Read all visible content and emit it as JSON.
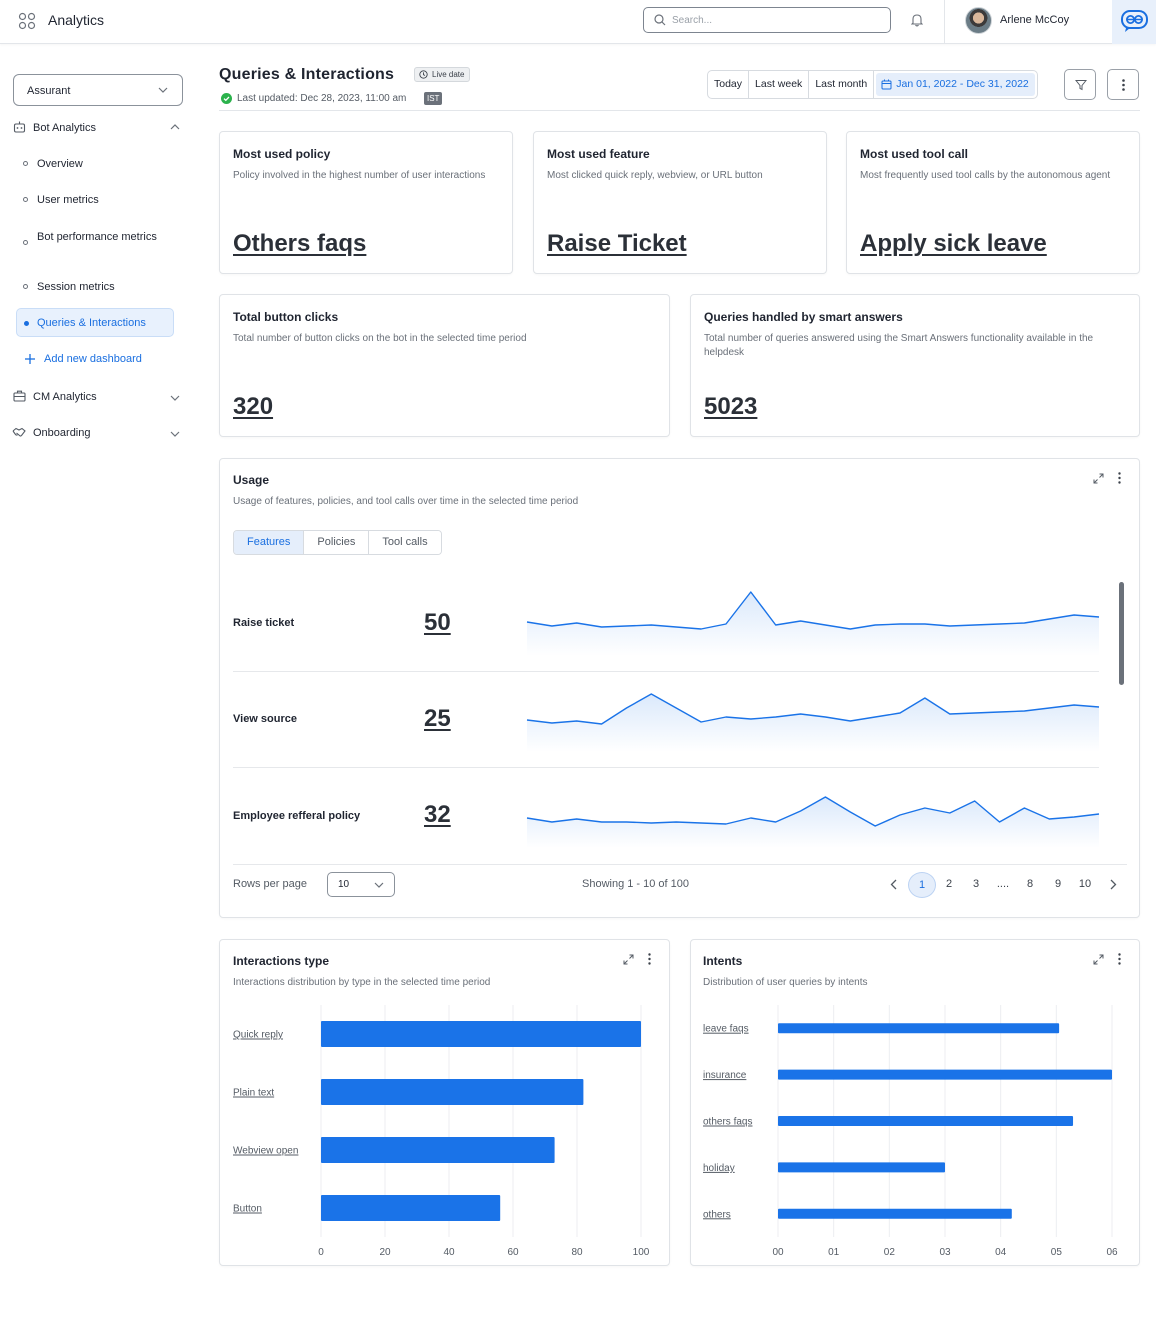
{
  "app": {
    "title": "Analytics"
  },
  "topbar": {
    "search_placeholder": "Search...",
    "user_name": "Arlene McCoy"
  },
  "sidebar": {
    "org": "Assurant",
    "sections": [
      {
        "label": "Bot Analytics"
      },
      {
        "label": "CM Analytics"
      },
      {
        "label": "Onboarding"
      }
    ],
    "items": [
      {
        "label": "Overview"
      },
      {
        "label": "User metrics"
      },
      {
        "label": "Bot performance metrics"
      },
      {
        "label": "Session metrics"
      },
      {
        "label": "Queries & Interactions"
      }
    ],
    "add_dashboard": "Add new dashboard"
  },
  "header": {
    "title": "Queries & Interactions",
    "live_badge": "Live date",
    "last_updated": "Last updated: Dec 28, 2023, 11:00 am",
    "timezone": "IST",
    "ranges": [
      "Today",
      "Last week",
      "Last month"
    ],
    "date_range": "Jan 01, 2022 - Dec 31, 2022"
  },
  "kpi_top": [
    {
      "title": "Most used policy",
      "desc": "Policy involved in the highest number of user interactions",
      "value": "Others faqs"
    },
    {
      "title": "Most used feature",
      "desc": "Most clicked quick reply, webview, or URL button",
      "value": "Raise Ticket"
    },
    {
      "title": "Most used tool call",
      "desc": "Most frequently used tool calls by the autonomous agent",
      "value": "Apply sick leave"
    }
  ],
  "kpi_mid": [
    {
      "title": "Total button clicks",
      "desc": "Total number of button clicks on the bot in the selected time period",
      "value": "320"
    },
    {
      "title": "Queries handled by smart answers",
      "desc": "Total number of queries answered using the Smart Answers functionality available in the helpdesk",
      "value": "5023"
    }
  ],
  "usage": {
    "title": "Usage",
    "desc": "Usage of features, policies, and tool calls over time in the selected time period",
    "tabs": [
      "Features",
      "Policies",
      "Tool calls"
    ],
    "active_tab": "Features",
    "rows": [
      {
        "label": "Raise ticket",
        "value": "50",
        "trend": [
          30,
          26,
          29,
          25,
          26,
          27,
          25,
          23,
          28,
          60,
          27,
          31,
          27,
          23,
          27,
          28,
          28,
          26,
          27,
          28,
          29,
          33,
          37,
          35
        ]
      },
      {
        "label": "View source",
        "value": "25",
        "trend": [
          28,
          25,
          27,
          24,
          40,
          54,
          40,
          26,
          31,
          29,
          31,
          34,
          31,
          27,
          31,
          35,
          50,
          34,
          35,
          36,
          37,
          40,
          43,
          41
        ]
      },
      {
        "label": "Employee refferal policy",
        "value": "32",
        "trend": [
          26,
          22,
          25,
          22,
          22,
          21,
          22,
          21,
          20,
          26,
          22,
          33,
          47,
          32,
          18,
          29,
          36,
          31,
          43,
          22,
          36,
          25,
          27,
          30
        ]
      }
    ],
    "rows_per_page_label": "Rows per page",
    "rows_per_page": "10",
    "showing": "Showing 1 - 10 of 100",
    "pages": [
      "1",
      "2",
      "3",
      "....",
      "8",
      "9",
      "10"
    ],
    "current_page": "1"
  },
  "chart_data": [
    {
      "type": "bar",
      "orientation": "horizontal",
      "title": "Interactions type",
      "subtitle": "Interactions distribution by type in the selected time period",
      "categories": [
        "Quick reply",
        "Plain text",
        "Webview open",
        "Button"
      ],
      "values": [
        100,
        82,
        73,
        56
      ],
      "xticks": [
        "0",
        "20",
        "40",
        "60",
        "80",
        "100"
      ],
      "xlim": [
        0,
        100
      ],
      "color": "#1a73e8"
    },
    {
      "type": "bar",
      "orientation": "horizontal",
      "title": "Intents",
      "subtitle": "Distribution of user queries by intents",
      "categories": [
        "leave faqs",
        "insurance",
        "others faqs",
        "holiday",
        "others"
      ],
      "values": [
        5.05,
        6.0,
        5.3,
        3.0,
        4.2
      ],
      "xticks": [
        "00",
        "01",
        "02",
        "03",
        "04",
        "05",
        "06"
      ],
      "xlim": [
        0,
        6
      ],
      "color": "#1a73e8"
    }
  ],
  "colors": {
    "accent": "#1a6fe0",
    "bar": "#1a73e8",
    "success": "#2bb24c"
  }
}
